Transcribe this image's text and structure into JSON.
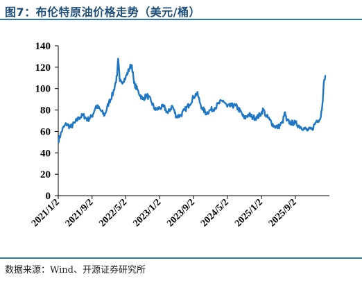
{
  "header": {
    "title": "图7：布伦特原油价格走势（美元/桶）"
  },
  "footer": {
    "source": "数据来源：Wind、开源证券研究所"
  },
  "colors": {
    "line": "#1f77c4",
    "rule": "#2e75b6",
    "title": "#1f4e79"
  },
  "chart_data": {
    "type": "line",
    "title": "布伦特原油价格走势（美元/桶）",
    "xlabel": "",
    "ylabel": "",
    "ylim": [
      0,
      140
    ],
    "yticks": [
      0,
      20,
      40,
      60,
      80,
      100,
      120,
      140
    ],
    "xlim": [
      "2021-01-02",
      "2026-04-10"
    ],
    "xtick_labels": [
      "2021/1/2",
      "2021/9/2",
      "2022/5/2",
      "2023/1/2",
      "2023/9/2",
      "2024/5/2",
      "2025/1/2",
      "2025/9/2"
    ],
    "xtick_dates": [
      "2021-01-02",
      "2021-09-02",
      "2022-05-02",
      "2023-01-02",
      "2023-09-02",
      "2024-05-02",
      "2025-01-02",
      "2025-09-02"
    ],
    "grid": false,
    "legend": "none",
    "series": [
      {
        "x": [
          "2021-01-02",
          "2021-02-01",
          "2021-03-01",
          "2021-04-01",
          "2021-05-01",
          "2021-06-01",
          "2021-07-01",
          "2021-08-01",
          "2021-09-01",
          "2021-10-01",
          "2021-11-01",
          "2021-12-01",
          "2022-01-01",
          "2022-02-01",
          "2022-03-01",
          "2022-03-08",
          "2022-03-20",
          "2022-04-01",
          "2022-05-01",
          "2022-06-01",
          "2022-06-15",
          "2022-07-01",
          "2022-08-01",
          "2022-09-01",
          "2022-10-01",
          "2022-11-01",
          "2022-12-01",
          "2023-01-01",
          "2023-02-01",
          "2023-03-01",
          "2023-04-01",
          "2023-05-01",
          "2023-06-01",
          "2023-07-01",
          "2023-08-01",
          "2023-09-01",
          "2023-09-27",
          "2023-10-15",
          "2023-11-01",
          "2023-12-01",
          "2024-01-01",
          "2024-02-01",
          "2024-03-01",
          "2024-04-01",
          "2024-05-01",
          "2024-06-01",
          "2024-07-01",
          "2024-08-01",
          "2024-09-01",
          "2024-10-01",
          "2024-11-01",
          "2024-12-01",
          "2025-01-01",
          "2025-01-15",
          "2025-02-01",
          "2025-03-01",
          "2025-04-01",
          "2025-05-01",
          "2025-06-01",
          "2025-06-20",
          "2025-07-01",
          "2025-08-01",
          "2025-09-01",
          "2025-10-01",
          "2025-11-01",
          "2025-12-01",
          "2026-01-01",
          "2026-02-01",
          "2026-03-01",
          "2026-03-15",
          "2026-03-25",
          "2026-04-01",
          "2026-04-10"
        ],
        "y": [
          51,
          62,
          67,
          64,
          68,
          73,
          75,
          71,
          74,
          84,
          80,
          75,
          87,
          96,
          112,
          128,
          107,
          106,
          110,
          120,
          122,
          105,
          97,
          90,
          94,
          88,
          80,
          82,
          83,
          77,
          84,
          74,
          75,
          80,
          85,
          92,
          96,
          88,
          82,
          77,
          80,
          82,
          86,
          89,
          83,
          84,
          84,
          79,
          72,
          76,
          73,
          73,
          77,
          81,
          75,
          71,
          65,
          64,
          68,
          78,
          70,
          68,
          68,
          65,
          63,
          61,
          62,
          70,
          72,
          85,
          105,
          108,
          112
        ]
      }
    ]
  }
}
